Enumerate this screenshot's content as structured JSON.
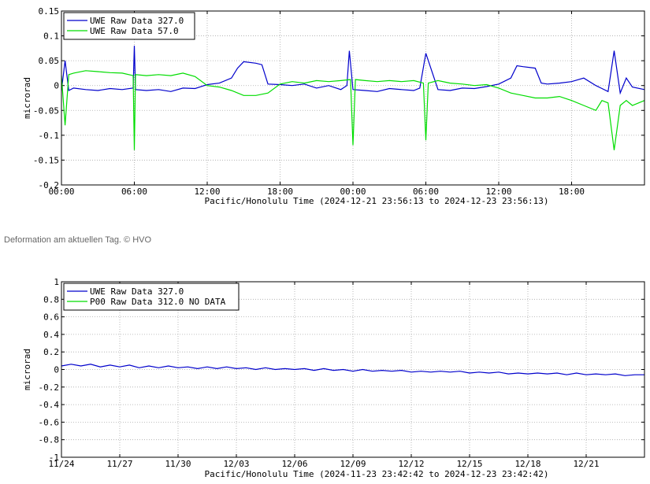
{
  "caption": "Deformation am aktuellen Tag. © HVO",
  "chart_data": [
    {
      "type": "line",
      "ylabel": "microrad",
      "xlabel": "Pacific/Honolulu Time (2024-12-21 23:56:13 to 2024-12-23 23:56:13)",
      "ylim": [
        -0.2,
        0.15
      ],
      "xlim": [
        0,
        48
      ],
      "yticks": [
        0.15,
        0.1,
        0.05,
        0,
        -0.05,
        -0.1,
        -0.15,
        -0.2
      ],
      "ytick_labels": [
        "0.15",
        "0.1",
        "0.05",
        "0",
        "-0.05",
        "-0.1",
        "-0.15",
        "-0.2"
      ],
      "xticks": [
        0,
        6,
        12,
        18,
        24,
        30,
        36,
        42
      ],
      "xtick_labels": [
        "00:00",
        "06:00",
        "12:00",
        "18:00",
        "00:00",
        "06:00",
        "12:00",
        "18:00"
      ],
      "grid": true,
      "legend_position": "top-left",
      "series": [
        {
          "name": "UWE Raw Data 327.0",
          "color": "#0000cc",
          "x": [
            0,
            0.3,
            0.6,
            1,
            2,
            3,
            4,
            5,
            5.9,
            6,
            6.1,
            7,
            8,
            9,
            10,
            11,
            12,
            13,
            14,
            14.5,
            15,
            16,
            16.5,
            17,
            18,
            19,
            20,
            21,
            22,
            23,
            23.5,
            23.7,
            24,
            25,
            26,
            27,
            28,
            29,
            29.5,
            30,
            31,
            32,
            33,
            34,
            35,
            36,
            37,
            37.5,
            38,
            39,
            39.5,
            40,
            41,
            42,
            43,
            44,
            45,
            45.5,
            46,
            46.5,
            47,
            48
          ],
          "y": [
            -0.01,
            0.05,
            -0.01,
            -0.005,
            -0.008,
            -0.01,
            -0.006,
            -0.008,
            -0.005,
            0.08,
            -0.008,
            -0.01,
            -0.008,
            -0.012,
            -0.005,
            -0.006,
            0.002,
            0.005,
            0.015,
            0.035,
            0.048,
            0.045,
            0.042,
            0.003,
            0.002,
            0.0,
            0.003,
            -0.005,
            0.0,
            -0.008,
            0.0,
            0.07,
            -0.008,
            -0.01,
            -0.012,
            -0.006,
            -0.008,
            -0.01,
            -0.005,
            0.065,
            -0.008,
            -0.01,
            -0.005,
            -0.006,
            -0.002,
            0.003,
            0.015,
            0.04,
            0.038,
            0.035,
            0.005,
            0.003,
            0.005,
            0.008,
            0.015,
            0.0,
            -0.012,
            0.07,
            -0.015,
            0.015,
            -0.003,
            -0.008
          ]
        },
        {
          "name": "UWE Raw Data 57.0",
          "color": "#00dd00",
          "x": [
            0,
            0.3,
            0.6,
            1,
            2,
            3,
            4,
            5,
            5.9,
            6,
            6.1,
            7,
            8,
            9,
            10,
            11,
            12,
            13,
            14,
            15,
            16,
            17,
            18,
            19,
            20,
            21,
            22,
            23,
            23.8,
            24,
            24.2,
            25,
            26,
            27,
            28,
            29,
            29.8,
            30,
            30.2,
            31,
            32,
            33,
            34,
            35,
            36,
            37,
            38,
            39,
            40,
            41,
            42,
            43,
            44,
            44.5,
            45,
            45.5,
            46,
            46.5,
            47,
            48
          ],
          "y": [
            0.02,
            -0.08,
            0.022,
            0.025,
            0.03,
            0.028,
            0.026,
            0.025,
            0.02,
            -0.13,
            0.022,
            0.02,
            0.022,
            0.02,
            0.025,
            0.018,
            0.0,
            -0.003,
            -0.01,
            -0.02,
            -0.02,
            -0.015,
            0.003,
            0.008,
            0.005,
            0.01,
            0.008,
            0.01,
            0.012,
            -0.12,
            0.012,
            0.01,
            0.008,
            0.01,
            0.008,
            0.01,
            0.005,
            -0.11,
            0.005,
            0.01,
            0.005,
            0.003,
            0.0,
            0.002,
            -0.005,
            -0.015,
            -0.02,
            -0.025,
            -0.025,
            -0.022,
            -0.03,
            -0.04,
            -0.05,
            -0.03,
            -0.035,
            -0.13,
            -0.04,
            -0.03,
            -0.04,
            -0.03
          ]
        }
      ]
    },
    {
      "type": "line",
      "ylabel": "microrad",
      "xlabel": "Pacific/Honolulu Time (2024-11-23 23:42:42 to 2024-12-23 23:42:42)",
      "ylim": [
        -1,
        1
      ],
      "xlim": [
        0,
        30
      ],
      "yticks": [
        1,
        0.8,
        0.6,
        0.4,
        0.2,
        0,
        -0.2,
        -0.4,
        -0.6,
        -0.8,
        -1
      ],
      "ytick_labels": [
        "1",
        "0.8",
        "0.6",
        "0.4",
        "0.2",
        "0",
        "-0.2",
        "-0.4",
        "-0.6",
        "-0.8",
        "-1"
      ],
      "xticks": [
        0,
        3,
        6,
        9,
        12,
        15,
        18,
        21,
        24,
        27
      ],
      "xtick_labels": [
        "11/24",
        "11/27",
        "11/30",
        "12/03",
        "12/06",
        "12/09",
        "12/12",
        "12/15",
        "12/18",
        "12/21"
      ],
      "grid": true,
      "legend_position": "top-left",
      "series": [
        {
          "name": "UWE Raw Data 327.0",
          "color": "#0000cc",
          "x": [
            0,
            0.5,
            1,
            1.5,
            2,
            2.5,
            3,
            3.5,
            4,
            4.5,
            5,
            5.5,
            6,
            6.5,
            7,
            7.5,
            8,
            8.5,
            9,
            9.5,
            10,
            10.5,
            11,
            11.5,
            12,
            12.5,
            13,
            13.5,
            14,
            14.5,
            15,
            15.5,
            16,
            16.5,
            17,
            17.5,
            18,
            18.5,
            19,
            19.5,
            20,
            20.5,
            21,
            21.5,
            22,
            22.5,
            23,
            23.5,
            24,
            24.5,
            25,
            25.5,
            26,
            26.5,
            27,
            27.5,
            28,
            28.5,
            29,
            29.5,
            30
          ],
          "y": [
            0.04,
            0.06,
            0.04,
            0.06,
            0.03,
            0.05,
            0.03,
            0.05,
            0.02,
            0.04,
            0.02,
            0.04,
            0.02,
            0.03,
            0.01,
            0.03,
            0.01,
            0.03,
            0.01,
            0.02,
            0.0,
            0.02,
            0.0,
            0.01,
            0.0,
            0.01,
            -0.01,
            0.01,
            -0.01,
            0.0,
            -0.02,
            0.0,
            -0.02,
            -0.01,
            -0.02,
            -0.01,
            -0.03,
            -0.02,
            -0.03,
            -0.02,
            -0.03,
            -0.02,
            -0.04,
            -0.03,
            -0.04,
            -0.03,
            -0.05,
            -0.04,
            -0.05,
            -0.04,
            -0.05,
            -0.04,
            -0.06,
            -0.04,
            -0.06,
            -0.05,
            -0.06,
            -0.05,
            -0.07,
            -0.06,
            -0.06
          ]
        },
        {
          "name": "P00 Raw Data 312.0 NO DATA",
          "color": "#00dd00",
          "x": [],
          "y": []
        }
      ]
    }
  ]
}
